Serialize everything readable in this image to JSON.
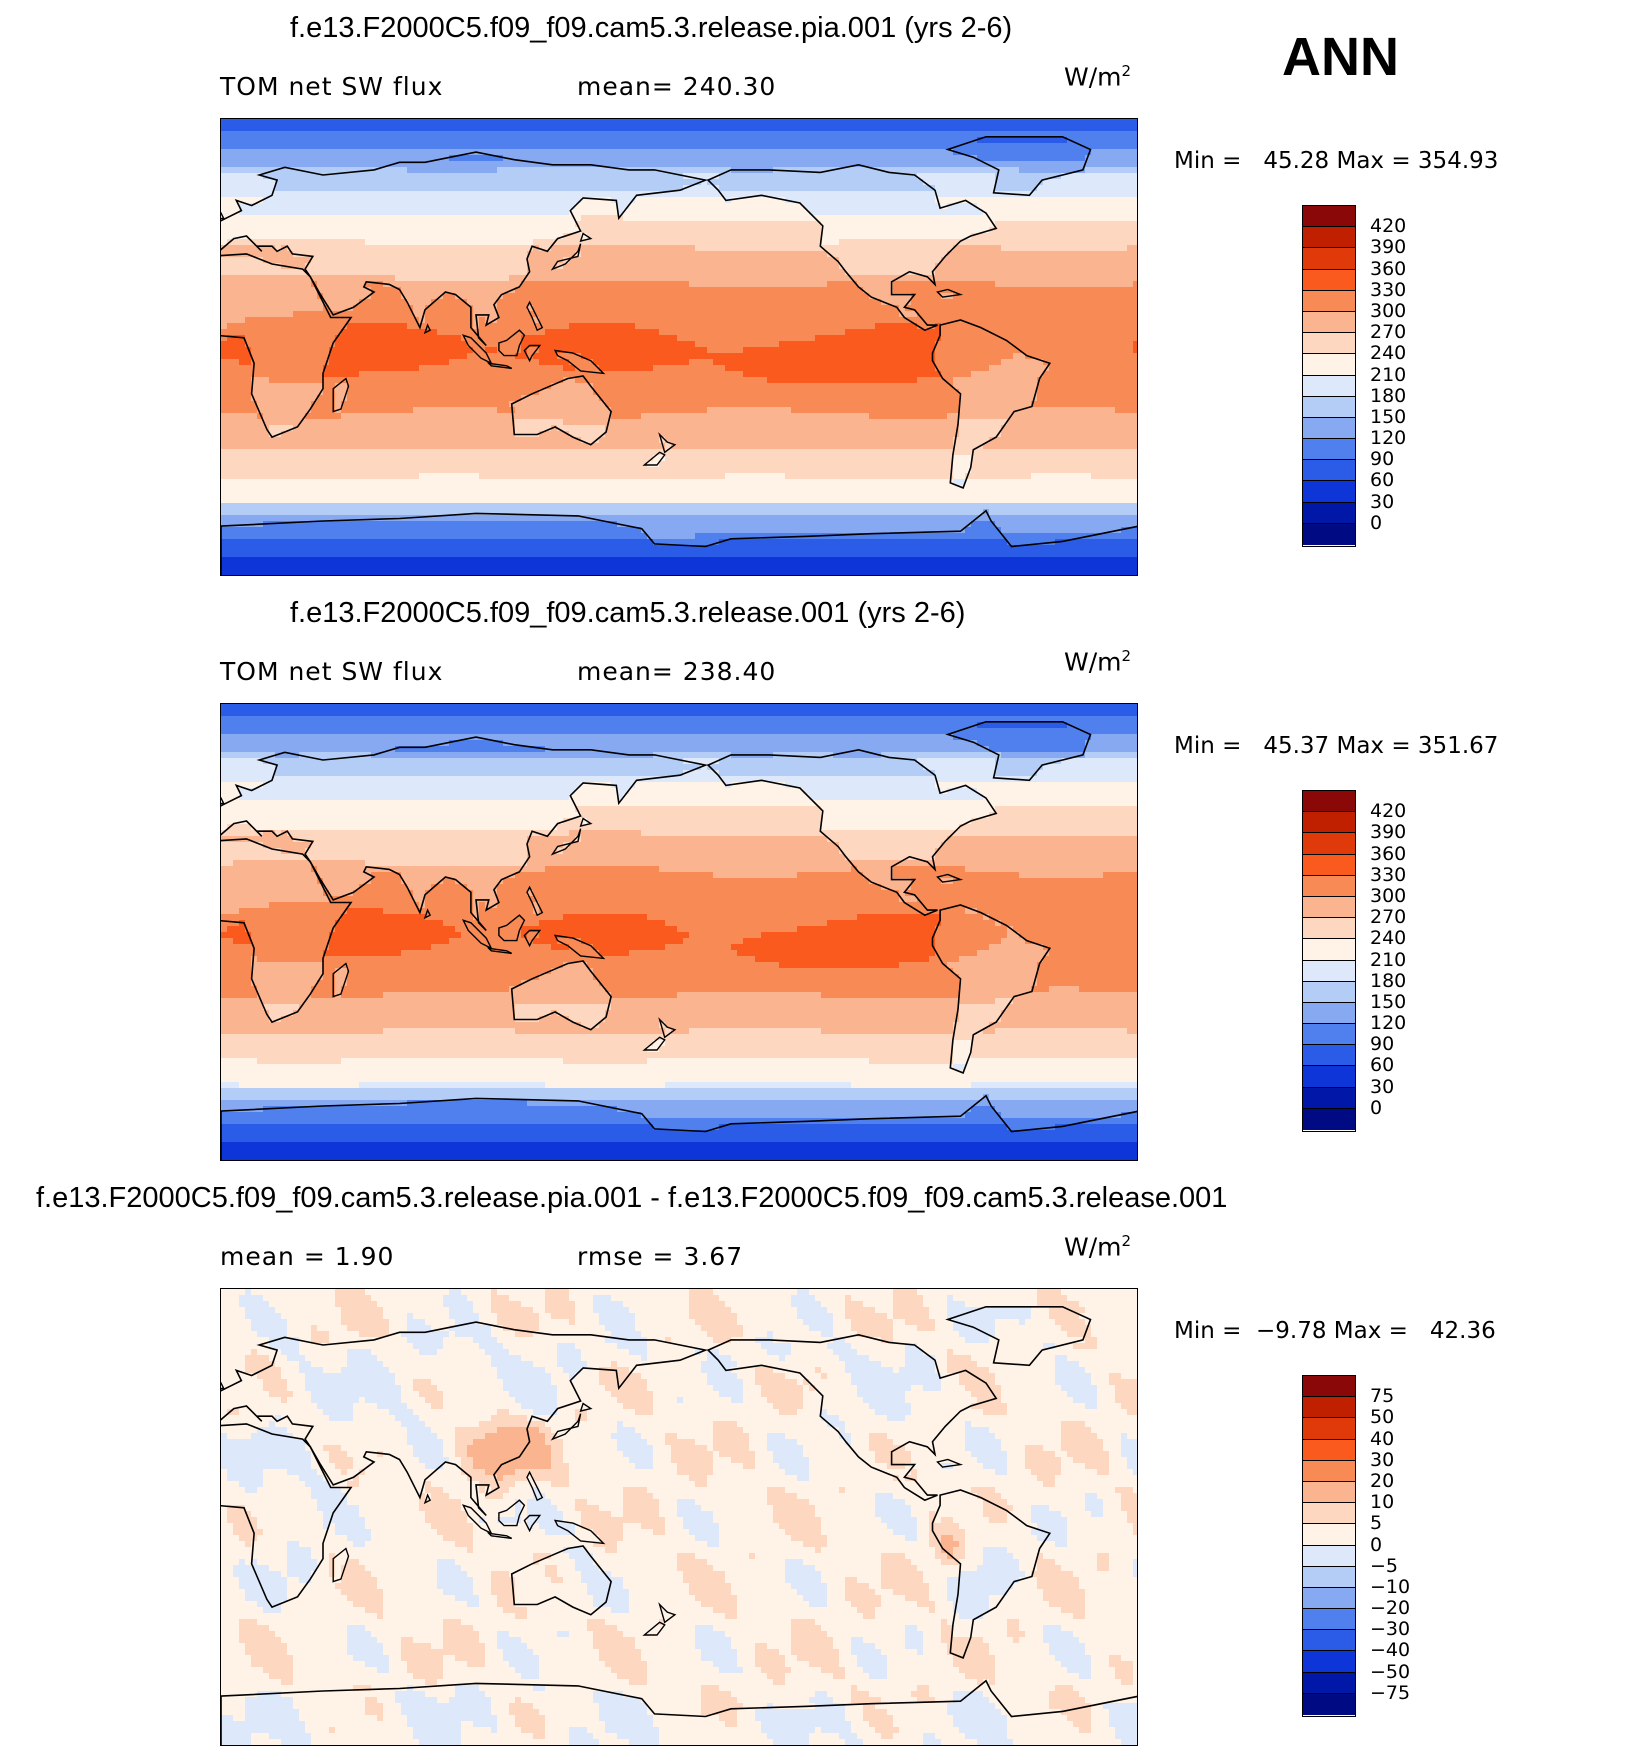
{
  "season_label": "ANN",
  "panels": [
    {
      "title": "f.e13.F2000C5.f09_f09.cam5.3.release.pia.001 (yrs 2-6)",
      "left_label": "TOM net SW flux",
      "center_label": "mean= 240.30",
      "units": "W/m",
      "units_sup": "2",
      "minmax": "Min =   45.28 Max = 354.93",
      "colorbar_labels": [
        "420",
        "390",
        "360",
        "330",
        "300",
        "270",
        "240",
        "210",
        "180",
        "150",
        "120",
        "90",
        "60",
        "30",
        "0"
      ],
      "colors": [
        "#8a0808",
        "#c02000",
        "#e03a0a",
        "#fa5a1e",
        "#f88a55",
        "#fbb490",
        "#fdd7bf",
        "#fff3e8",
        "#dde9fb",
        "#b3cdf6",
        "#86a9f2",
        "#4f80ee",
        "#2a5ce8",
        "#0d35d7",
        "#0017a8",
        "#000a82"
      ],
      "field": "base"
    },
    {
      "title": "f.e13.F2000C5.f09_f09.cam5.3.release.001 (yrs 2-6)",
      "left_label": "TOM net SW flux",
      "center_label": "mean= 238.40",
      "units": "W/m",
      "units_sup": "2",
      "minmax": "Min =   45.37 Max = 351.67",
      "colorbar_labels": [
        "420",
        "390",
        "360",
        "330",
        "300",
        "270",
        "240",
        "210",
        "180",
        "150",
        "120",
        "90",
        "60",
        "30",
        "0"
      ],
      "colors": [
        "#8a0808",
        "#c02000",
        "#e03a0a",
        "#fa5a1e",
        "#f88a55",
        "#fbb490",
        "#fdd7bf",
        "#fff3e8",
        "#dde9fb",
        "#b3cdf6",
        "#86a9f2",
        "#4f80ee",
        "#2a5ce8",
        "#0d35d7",
        "#0017a8",
        "#000a82"
      ],
      "field": "base"
    },
    {
      "title": "f.e13.F2000C5.f09_f09.cam5.3.release.pia.001 - f.e13.F2000C5.f09_f09.cam5.3.release.001",
      "left_label": "mean =     1.90",
      "center_label": "rmse =     3.67",
      "units": "W/m",
      "units_sup": "2",
      "minmax": "Min =  −9.78 Max =   42.36",
      "colorbar_labels": [
        "75",
        "50",
        "40",
        "30",
        "20",
        "10",
        "5",
        "0",
        "−5",
        "−10",
        "−20",
        "−30",
        "−40",
        "−50",
        "−75"
      ],
      "colors": [
        "#8a0808",
        "#c02000",
        "#e03a0a",
        "#fa5a1e",
        "#f88a55",
        "#fbb490",
        "#fdd7bf",
        "#fff3e8",
        "#dde9fb",
        "#b3cdf6",
        "#86a9f2",
        "#4f80ee",
        "#2a5ce8",
        "#0d35d7",
        "#0017a8",
        "#000a82"
      ],
      "field": "diff"
    }
  ],
  "chart_data": [
    {
      "type": "heatmap",
      "title": "f.e13.F2000C5.f09_f09.cam5.3.release.pia.001 (yrs 2-6)",
      "variable": "TOM net SW flux",
      "mean": 240.3,
      "min": 45.28,
      "max": 354.93,
      "units": "W/m2",
      "levels": [
        0,
        30,
        60,
        90,
        120,
        150,
        180,
        210,
        240,
        270,
        300,
        330,
        360,
        390,
        420
      ]
    },
    {
      "type": "heatmap",
      "title": "f.e13.F2000C5.f09_f09.cam5.3.release.001 (yrs 2-6)",
      "variable": "TOM net SW flux",
      "mean": 238.4,
      "min": 45.37,
      "max": 351.67,
      "units": "W/m2",
      "levels": [
        0,
        30,
        60,
        90,
        120,
        150,
        180,
        210,
        240,
        270,
        300,
        330,
        360,
        390,
        420
      ]
    },
    {
      "type": "heatmap",
      "title": "f.e13.F2000C5.f09_f09.cam5.3.release.pia.001 - f.e13.F2000C5.f09_f09.cam5.3.release.001",
      "mean": 1.9,
      "rmse": 3.67,
      "min": -9.78,
      "max": 42.36,
      "units": "W/m2",
      "levels": [
        -75,
        -50,
        -40,
        -30,
        -20,
        -10,
        -5,
        0,
        5,
        10,
        20,
        30,
        40,
        50,
        75
      ]
    }
  ]
}
